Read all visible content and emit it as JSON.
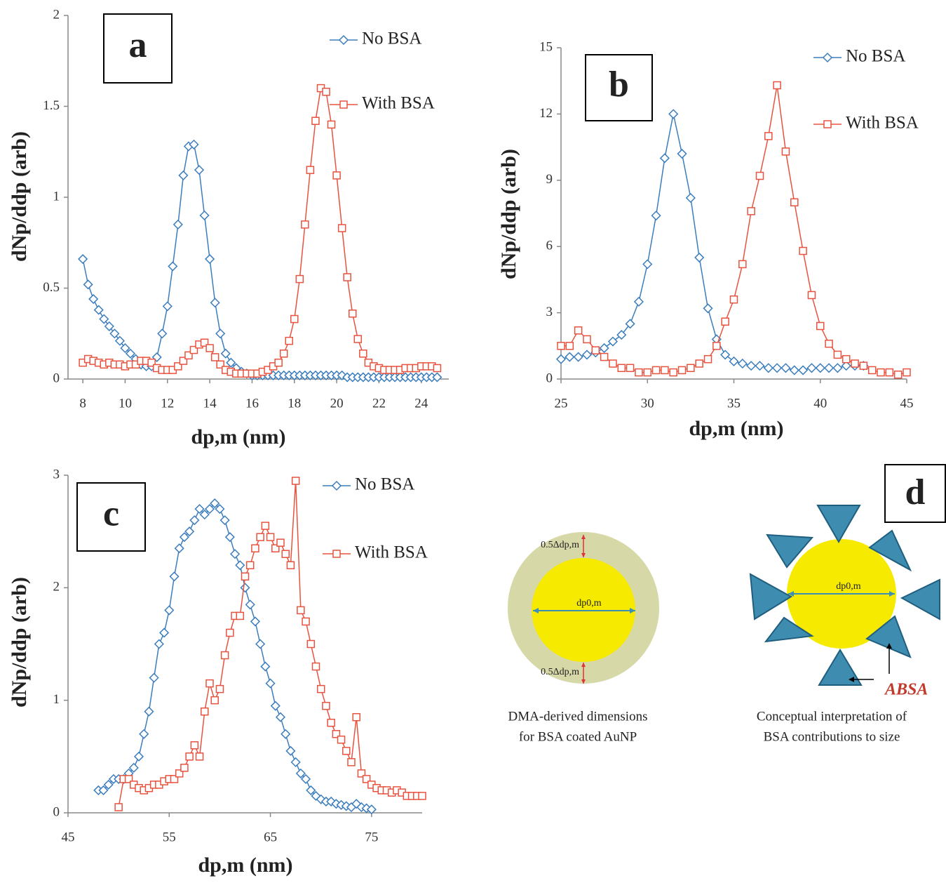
{
  "chart_data": [
    {
      "type": "line",
      "panel_label": "a",
      "y_label": "dNp/ddp (arb)",
      "x_label": "dp,m (nm)",
      "xlim": [
        7.3,
        25.3
      ],
      "xticks": [
        8,
        10,
        12,
        14,
        16,
        18,
        20,
        22,
        24
      ],
      "ylim": [
        0,
        2
      ],
      "yticks": [
        0,
        0.5,
        1,
        1.5,
        2
      ],
      "grid": false,
      "legend": "top-right",
      "x": [
        8,
        8.25,
        8.5,
        8.75,
        9,
        9.25,
        9.5,
        9.75,
        10,
        10.25,
        10.5,
        10.75,
        11,
        11.25,
        11.5,
        11.75,
        12,
        12.25,
        12.5,
        12.75,
        13,
        13.25,
        13.5,
        13.75,
        14,
        14.25,
        14.5,
        14.75,
        15,
        15.25,
        15.5,
        15.75,
        16,
        16.25,
        16.5,
        16.75,
        17,
        17.25,
        17.5,
        17.75,
        18,
        18.25,
        18.5,
        18.75,
        19,
        19.25,
        19.5,
        19.75,
        20,
        20.25,
        20.5,
        20.75,
        21,
        21.25,
        21.5,
        21.75,
        22,
        22.25,
        22.5,
        22.75,
        23,
        23.25,
        23.5,
        23.75,
        24,
        24.25,
        24.5,
        24.75
      ],
      "series": [
        {
          "name": "No BSA",
          "color": "#3b7dbd",
          "marker": "diamond",
          "values": [
            0.66,
            0.52,
            0.44,
            0.38,
            0.33,
            0.29,
            0.25,
            0.21,
            0.17,
            0.14,
            0.11,
            0.08,
            0.07,
            0.07,
            0.12,
            0.25,
            0.4,
            0.62,
            0.85,
            1.12,
            1.28,
            1.29,
            1.15,
            0.9,
            0.66,
            0.42,
            0.25,
            0.14,
            0.09,
            0.06,
            0.04,
            0.03,
            0.02,
            0.02,
            0.02,
            0.02,
            0.02,
            0.02,
            0.02,
            0.02,
            0.02,
            0.02,
            0.02,
            0.02,
            0.02,
            0.02,
            0.02,
            0.02,
            0.02,
            0.02,
            0.01,
            0.01,
            0.01,
            0.01,
            0.01,
            0.01,
            0.01,
            0.01,
            0.01,
            0.01,
            0.01,
            0.01,
            0.01,
            0.01,
            0.01,
            0.01,
            0.01,
            0.01
          ]
        },
        {
          "name": "With BSA",
          "color": "#e8533f",
          "marker": "square",
          "values": [
            0.09,
            0.11,
            0.1,
            0.09,
            0.08,
            0.09,
            0.08,
            0.08,
            0.07,
            0.08,
            0.08,
            0.1,
            0.1,
            0.09,
            0.06,
            0.05,
            0.05,
            0.05,
            0.07,
            0.1,
            0.13,
            0.16,
            0.19,
            0.2,
            0.17,
            0.12,
            0.08,
            0.05,
            0.04,
            0.03,
            0.03,
            0.03,
            0.03,
            0.03,
            0.04,
            0.05,
            0.07,
            0.09,
            0.14,
            0.21,
            0.33,
            0.55,
            0.85,
            1.15,
            1.42,
            1.6,
            1.58,
            1.4,
            1.12,
            0.83,
            0.56,
            0.36,
            0.22,
            0.14,
            0.09,
            0.07,
            0.06,
            0.05,
            0.05,
            0.05,
            0.05,
            0.06,
            0.06,
            0.06,
            0.07,
            0.07,
            0.07,
            0.06
          ]
        }
      ]
    },
    {
      "type": "line",
      "panel_label": "b",
      "y_label": "dNp/ddp (arb)",
      "x_label": "dp,m (nm)",
      "xlim": [
        25,
        45
      ],
      "xticks": [
        25,
        30,
        35,
        40,
        45
      ],
      "ylim": [
        0,
        15
      ],
      "yticks": [
        0,
        3,
        6,
        9,
        12,
        15
      ],
      "grid": false,
      "legend": "top-right",
      "x": [
        25,
        25.5,
        26,
        26.5,
        27,
        27.5,
        28,
        28.5,
        29,
        29.5,
        30,
        30.5,
        31,
        31.5,
        32,
        32.5,
        33,
        33.5,
        34,
        34.5,
        35,
        35.5,
        36,
        36.5,
        37,
        37.5,
        38,
        38.5,
        39,
        39.5,
        40,
        40.5,
        41,
        41.5,
        42,
        42.5,
        43,
        43.5,
        44,
        44.5,
        45
      ],
      "series": [
        {
          "name": "No BSA",
          "color": "#3b7dbd",
          "marker": "diamond",
          "values": [
            0.9,
            1.0,
            1.0,
            1.1,
            1.2,
            1.4,
            1.7,
            2.0,
            2.5,
            3.5,
            5.2,
            7.4,
            10.0,
            12.0,
            10.2,
            8.2,
            5.5,
            3.2,
            1.8,
            1.1,
            0.8,
            0.7,
            0.6,
            0.6,
            0.5,
            0.5,
            0.5,
            0.4,
            0.4,
            0.5,
            0.5,
            0.5,
            0.5,
            0.6,
            0.6,
            0.6,
            null,
            null,
            null,
            null,
            null
          ]
        },
        {
          "name": "With BSA",
          "color": "#e8533f",
          "marker": "square",
          "values": [
            1.5,
            1.5,
            2.2,
            1.8,
            1.3,
            1.0,
            0.7,
            0.5,
            0.5,
            0.3,
            0.3,
            0.4,
            0.4,
            0.3,
            0.4,
            0.5,
            0.7,
            0.9,
            1.5,
            2.6,
            3.6,
            5.2,
            7.6,
            9.2,
            11.0,
            13.3,
            10.3,
            8.0,
            5.8,
            3.8,
            2.4,
            1.6,
            1.1,
            0.9,
            0.7,
            0.6,
            0.4,
            0.3,
            0.3,
            0.2,
            0.3
          ]
        }
      ]
    },
    {
      "type": "line",
      "panel_label": "c",
      "y_label": "dNp/ddp (arb)",
      "x_label": "dp,m (nm)",
      "xlim": [
        45,
        80
      ],
      "xticks": [
        45,
        55,
        65,
        75
      ],
      "ylim": [
        0,
        3
      ],
      "yticks": [
        0,
        1,
        2,
        3
      ],
      "grid": false,
      "legend": "top-right",
      "x": [
        48,
        48.5,
        49,
        49.5,
        50,
        50.5,
        51,
        51.5,
        52,
        52.5,
        53,
        53.5,
        54,
        54.5,
        55,
        55.5,
        56,
        56.5,
        57,
        57.5,
        58,
        58.5,
        59,
        59.5,
        60,
        60.5,
        61,
        61.5,
        62,
        62.5,
        63,
        63.5,
        64,
        64.5,
        65,
        65.5,
        66,
        66.5,
        67,
        67.5,
        68,
        68.5,
        69,
        69.5,
        70,
        70.5,
        71,
        71.5,
        72,
        72.5,
        73,
        73.5,
        74,
        74.5,
        75,
        75.5,
        76,
        76.5,
        77,
        77.5,
        78,
        78.5,
        79,
        79.5,
        80
      ],
      "series": [
        {
          "name": "No BSA",
          "color": "#3b7dbd",
          "marker": "diamond",
          "values": [
            0.2,
            0.2,
            0.25,
            0.3,
            0.3,
            0.3,
            0.35,
            0.4,
            0.5,
            0.7,
            0.9,
            1.2,
            1.5,
            1.6,
            1.8,
            2.1,
            2.35,
            2.45,
            2.5,
            2.6,
            2.7,
            2.65,
            2.7,
            2.75,
            2.7,
            2.6,
            2.45,
            2.3,
            2.2,
            2.0,
            1.85,
            1.7,
            1.5,
            1.3,
            1.15,
            0.95,
            0.85,
            0.7,
            0.55,
            0.45,
            0.35,
            0.3,
            0.2,
            0.15,
            0.12,
            0.1,
            0.1,
            0.08,
            0.07,
            0.06,
            0.05,
            0.08,
            0.05,
            0.04,
            0.03,
            null,
            null,
            null,
            null,
            null,
            null,
            null,
            null,
            null,
            null
          ]
        },
        {
          "name": "With BSA",
          "color": "#e8533f",
          "marker": "square",
          "values": [
            null,
            null,
            null,
            null,
            0.05,
            0.3,
            0.3,
            0.25,
            0.22,
            0.2,
            0.22,
            0.25,
            0.25,
            0.28,
            0.3,
            0.3,
            0.35,
            0.4,
            0.5,
            0.6,
            0.5,
            0.9,
            1.15,
            1.0,
            1.1,
            1.4,
            1.6,
            1.75,
            1.75,
            2.1,
            2.2,
            2.35,
            2.45,
            2.55,
            2.45,
            2.35,
            2.4,
            2.3,
            2.2,
            2.95,
            1.8,
            1.7,
            1.5,
            1.3,
            1.1,
            0.95,
            0.8,
            0.7,
            0.65,
            0.55,
            0.45,
            0.85,
            0.35,
            0.3,
            0.25,
            0.22,
            0.2,
            0.2,
            0.18,
            0.2,
            0.18,
            0.15,
            0.15,
            0.15,
            0.15
          ]
        }
      ]
    }
  ],
  "diagram": {
    "panel_label": "d",
    "left": {
      "shell_top": "0.5Δdp,m",
      "core": "dp0,m",
      "shell_bottom": "0.5Δdp,m",
      "caption_1": "DMA-derived dimensions",
      "caption_2": "for BSA coated AuNP"
    },
    "right": {
      "core": "dp0,m",
      "area": "ABSA",
      "caption_1": "Conceptual interpretation of",
      "caption_2": "BSA contributions to size"
    }
  }
}
